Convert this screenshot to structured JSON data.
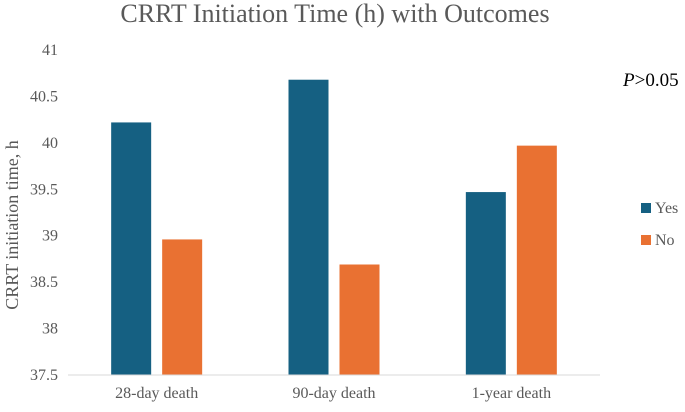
{
  "chart_data": {
    "type": "bar",
    "title": "CRRT Initiation Time (h) with Outcomes",
    "xlabel": "",
    "ylabel": "CRRT initiation time, h",
    "categories": [
      "28-day death",
      "90-day death",
      "1-year death"
    ],
    "series": [
      {
        "name": "Yes",
        "values": [
          40.22,
          40.68,
          39.47
        ],
        "color": "#156082"
      },
      {
        "name": "No",
        "values": [
          38.96,
          38.69,
          39.97
        ],
        "color": "#E97132"
      }
    ],
    "ylim": [
      37.5,
      41
    ],
    "yticks": [
      "37.5",
      "38",
      "38.5",
      "39",
      "39.5",
      "40",
      "40.5",
      "41"
    ],
    "grid": false,
    "legend_position": "right",
    "annotation": {
      "p_symbol": "P",
      "p_rest": ">0.05"
    }
  }
}
